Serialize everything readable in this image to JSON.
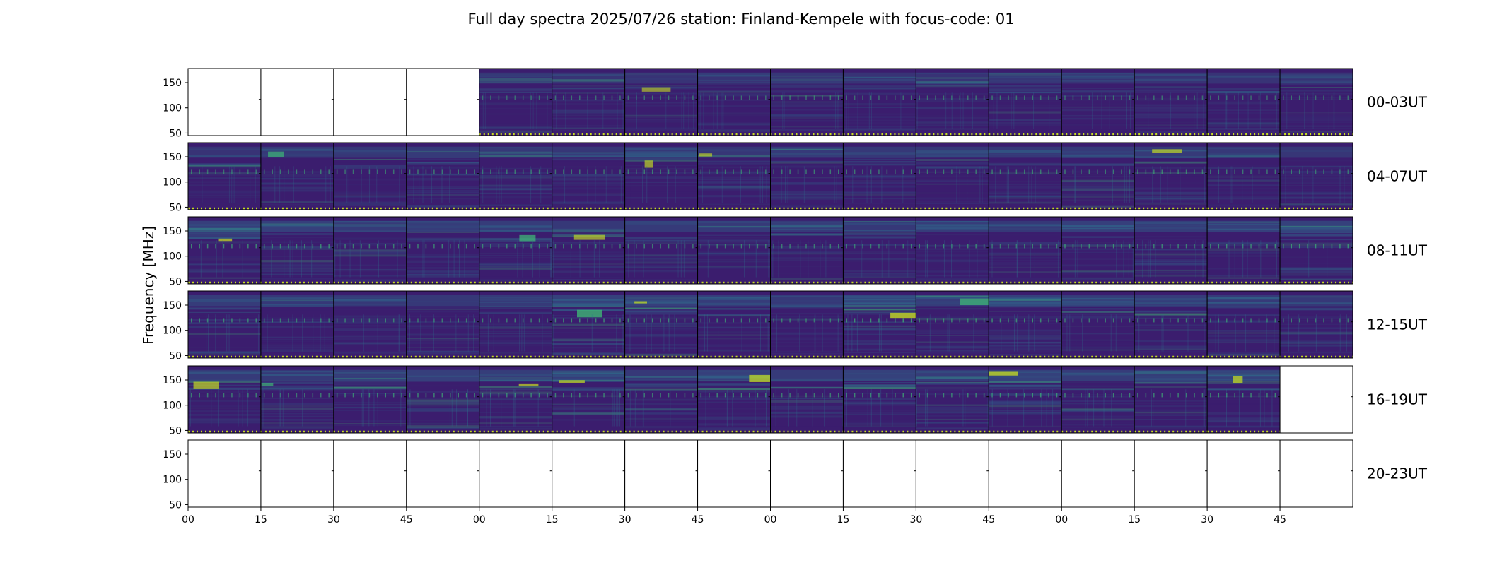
{
  "chart_data": {
    "type": "heatmap",
    "title": "Full day spectra 2025/07/26 station: Finland-Kempele with focus-code: 01",
    "ylabel": "Frequency [MHz]",
    "xlabel": "",
    "ylim": [
      45,
      178
    ],
    "yticks": [
      50,
      100,
      150
    ],
    "xticks": [
      "00",
      "15",
      "30",
      "45",
      "00",
      "15",
      "30",
      "45",
      "00",
      "15",
      "30",
      "45",
      "00",
      "15",
      "30",
      "45"
    ],
    "colormap": "viridis",
    "colors": {
      "low": "#3b1d6e",
      "mid": "#2f6f8e",
      "high": "#3fbf76",
      "peak": "#c8e020"
    },
    "panels_per_row": 16,
    "panel_minutes": 15,
    "rows": [
      {
        "label": "00-03UT",
        "filled": [
          0,
          0,
          0,
          0,
          1,
          1,
          1,
          1,
          1,
          1,
          1,
          1,
          1,
          1,
          1,
          1
        ],
        "bright": [
          0,
          0,
          0,
          0,
          0.15,
          0.2,
          0.2,
          0.2,
          0.25,
          0.2,
          0.2,
          0.25,
          0.2,
          0.2,
          0.2,
          0.2
        ]
      },
      {
        "label": "04-07UT",
        "filled": [
          1,
          1,
          1,
          1,
          1,
          1,
          1,
          1,
          1,
          1,
          1,
          1,
          1,
          1,
          1,
          1
        ],
        "bright": [
          0.2,
          0.3,
          0.25,
          0.35,
          0.3,
          0.25,
          0.3,
          0.25,
          0.35,
          0.3,
          0.3,
          0.3,
          0.35,
          0.35,
          0.3,
          0.25
        ]
      },
      {
        "label": "08-11UT",
        "filled": [
          1,
          1,
          1,
          1,
          1,
          1,
          1,
          1,
          1,
          1,
          1,
          1,
          1,
          1,
          1,
          1
        ],
        "bright": [
          0.45,
          0.45,
          0.35,
          0.4,
          0.4,
          0.3,
          0.35,
          0.35,
          0.35,
          0.3,
          0.4,
          0.3,
          0.45,
          0.4,
          0.45,
          0.5
        ]
      },
      {
        "label": "12-15UT",
        "filled": [
          1,
          1,
          1,
          1,
          1,
          1,
          1,
          1,
          1,
          1,
          1,
          1,
          1,
          1,
          1,
          1
        ],
        "bright": [
          0.4,
          0.3,
          0.3,
          0.3,
          0.35,
          0.5,
          0.45,
          0.4,
          0.3,
          0.55,
          0.4,
          0.5,
          0.35,
          0.4,
          0.35,
          0.3
        ]
      },
      {
        "label": "16-19UT",
        "filled": [
          1,
          1,
          1,
          1,
          1,
          1,
          1,
          1,
          1,
          1,
          1,
          1,
          1,
          1,
          1,
          0
        ],
        "bright": [
          0.35,
          0.3,
          0.4,
          0.45,
          0.4,
          0.4,
          0.3,
          0.45,
          0.35,
          0.5,
          0.4,
          0.5,
          0.4,
          0.4,
          0.45,
          0
        ]
      },
      {
        "label": "20-23UT",
        "filled": [
          0,
          0,
          0,
          0,
          0,
          0,
          0,
          0,
          0,
          0,
          0,
          0,
          0,
          0,
          0,
          0
        ],
        "bright": [
          0,
          0,
          0,
          0,
          0,
          0,
          0,
          0,
          0,
          0,
          0,
          0,
          0,
          0,
          0,
          0
        ]
      }
    ]
  }
}
